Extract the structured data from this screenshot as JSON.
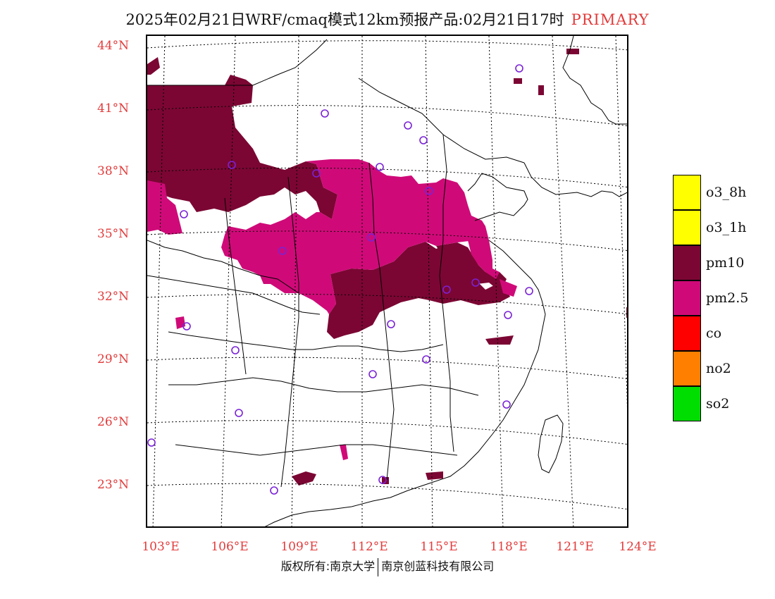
{
  "header": {
    "title": "2025年02月21日WRF/cmaq模式12km预报产品:02月21日17时",
    "tag": "PRIMARY"
  },
  "map": {
    "lat_labels": [
      "44°N",
      "41°N",
      "38°N",
      "35°N",
      "32°N",
      "29°N",
      "26°N",
      "23°N"
    ],
    "lon_labels": [
      "103°E",
      "106°E",
      "109°E",
      "112°E",
      "115°E",
      "118°E",
      "121°E",
      "124°E"
    ],
    "colors": {
      "pm10": "#7b0633",
      "pm25": "#cf0a78",
      "station_marker": "#7a22d6",
      "grid_label": "#e23b3b"
    }
  },
  "legend": [
    {
      "label": "o3_8h",
      "color": "#ffff00"
    },
    {
      "label": "o3_1h",
      "color": "#ffff00"
    },
    {
      "label": "pm10",
      "color": "#7b0633"
    },
    {
      "label": "pm2.5",
      "color": "#cf0a78"
    },
    {
      "label": "co",
      "color": "#ff0000"
    },
    {
      "label": "no2",
      "color": "#ff7f00"
    },
    {
      "label": "so2",
      "color": "#00dd00"
    }
  ],
  "footer": {
    "left": "版权所有:南京大学",
    "right": "南京创蓝科技有限公司"
  }
}
